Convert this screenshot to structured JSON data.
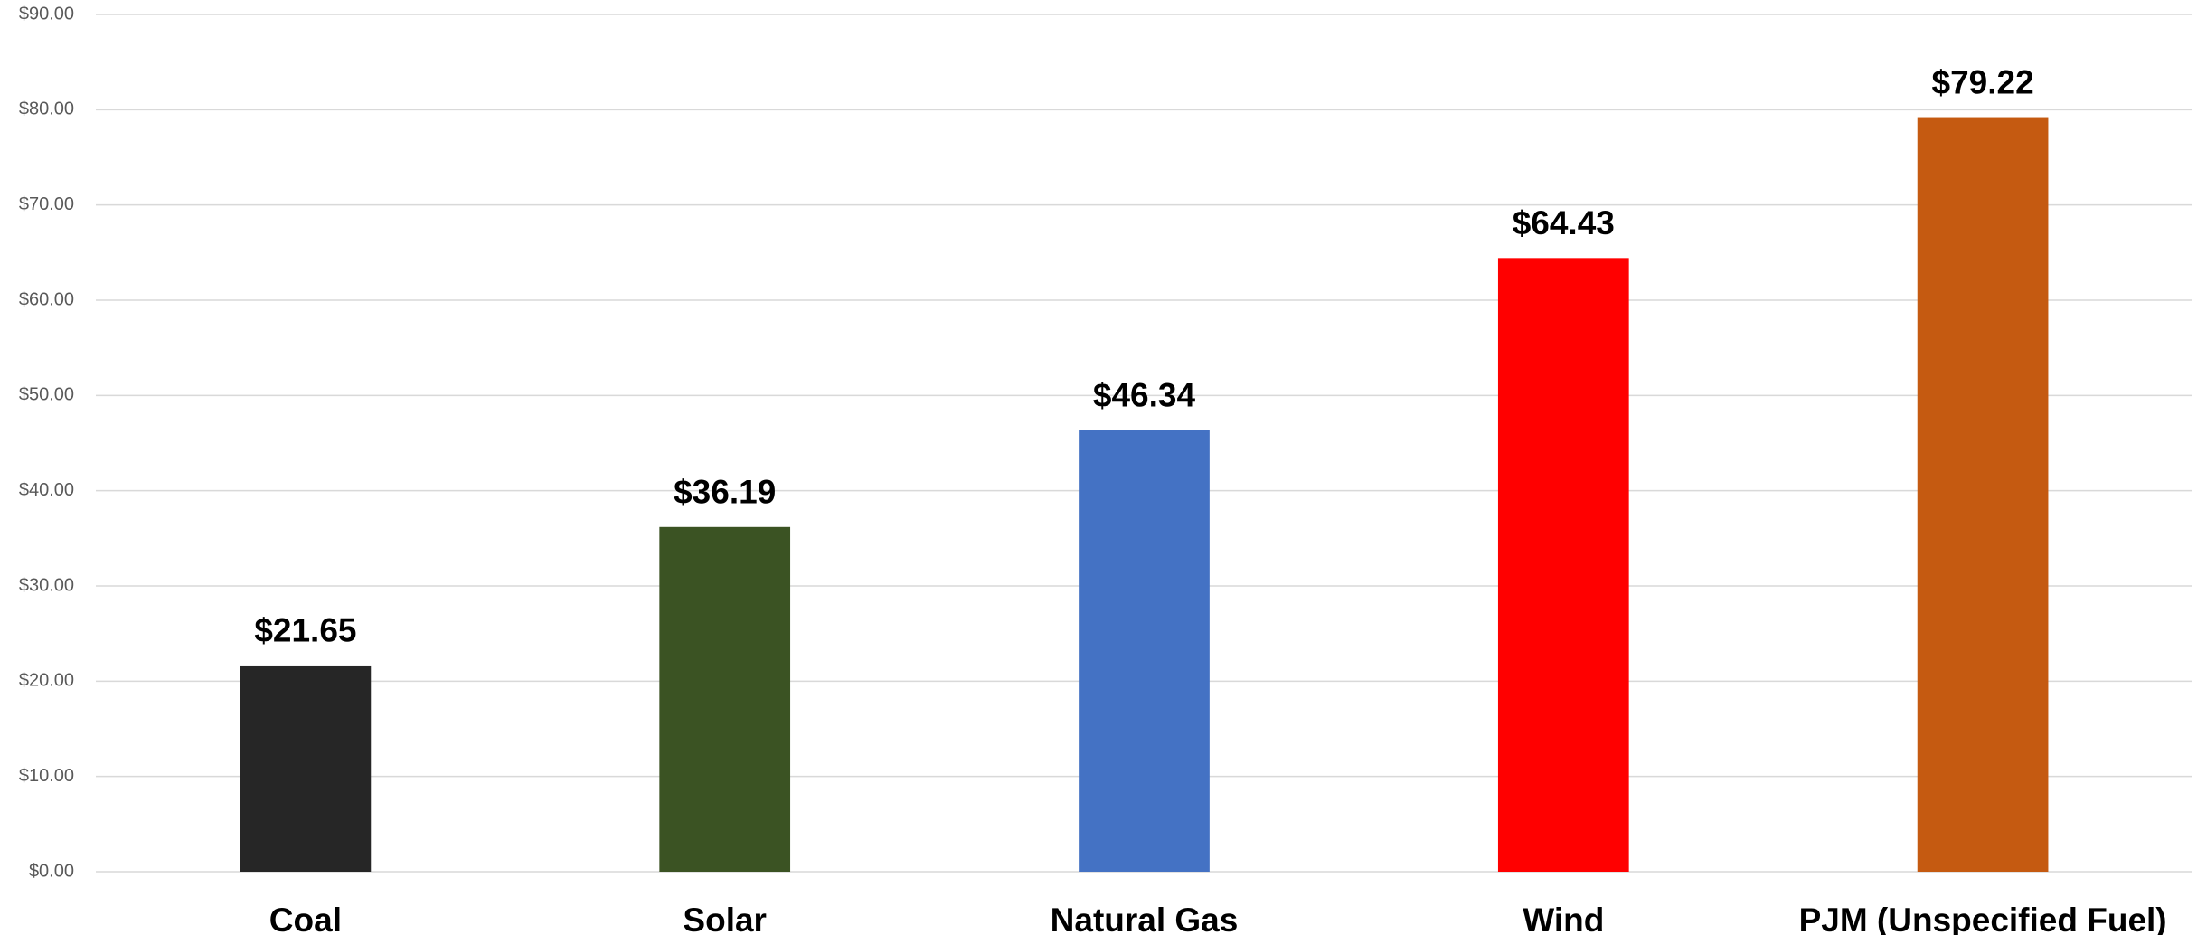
{
  "chart_data": {
    "type": "bar",
    "categories": [
      "Coal",
      "Solar",
      "Natural Gas",
      "Wind",
      "PJM (Unspecified Fuel)"
    ],
    "values": [
      21.65,
      36.19,
      46.34,
      64.43,
      79.22
    ],
    "value_labels": [
      "$21.65",
      "$36.19",
      "$46.34",
      "$64.43",
      "$79.22"
    ],
    "colors": [
      "#262626",
      "#3b5323",
      "#4472c4",
      "#ff0000",
      "#c55a11"
    ],
    "ylim": [
      0,
      90
    ],
    "yticks": [
      {
        "value": 0,
        "label": "$0.00"
      },
      {
        "value": 10,
        "label": "$10.00"
      },
      {
        "value": 20,
        "label": "$20.00"
      },
      {
        "value": 30,
        "label": "$30.00"
      },
      {
        "value": 40,
        "label": "$40.00"
      },
      {
        "value": 50,
        "label": "$50.00"
      },
      {
        "value": 60,
        "label": "$60.00"
      },
      {
        "value": 70,
        "label": "$70.00"
      },
      {
        "value": 80,
        "label": "$80.00"
      },
      {
        "value": 90,
        "label": "$90.00"
      }
    ],
    "grid": true
  }
}
